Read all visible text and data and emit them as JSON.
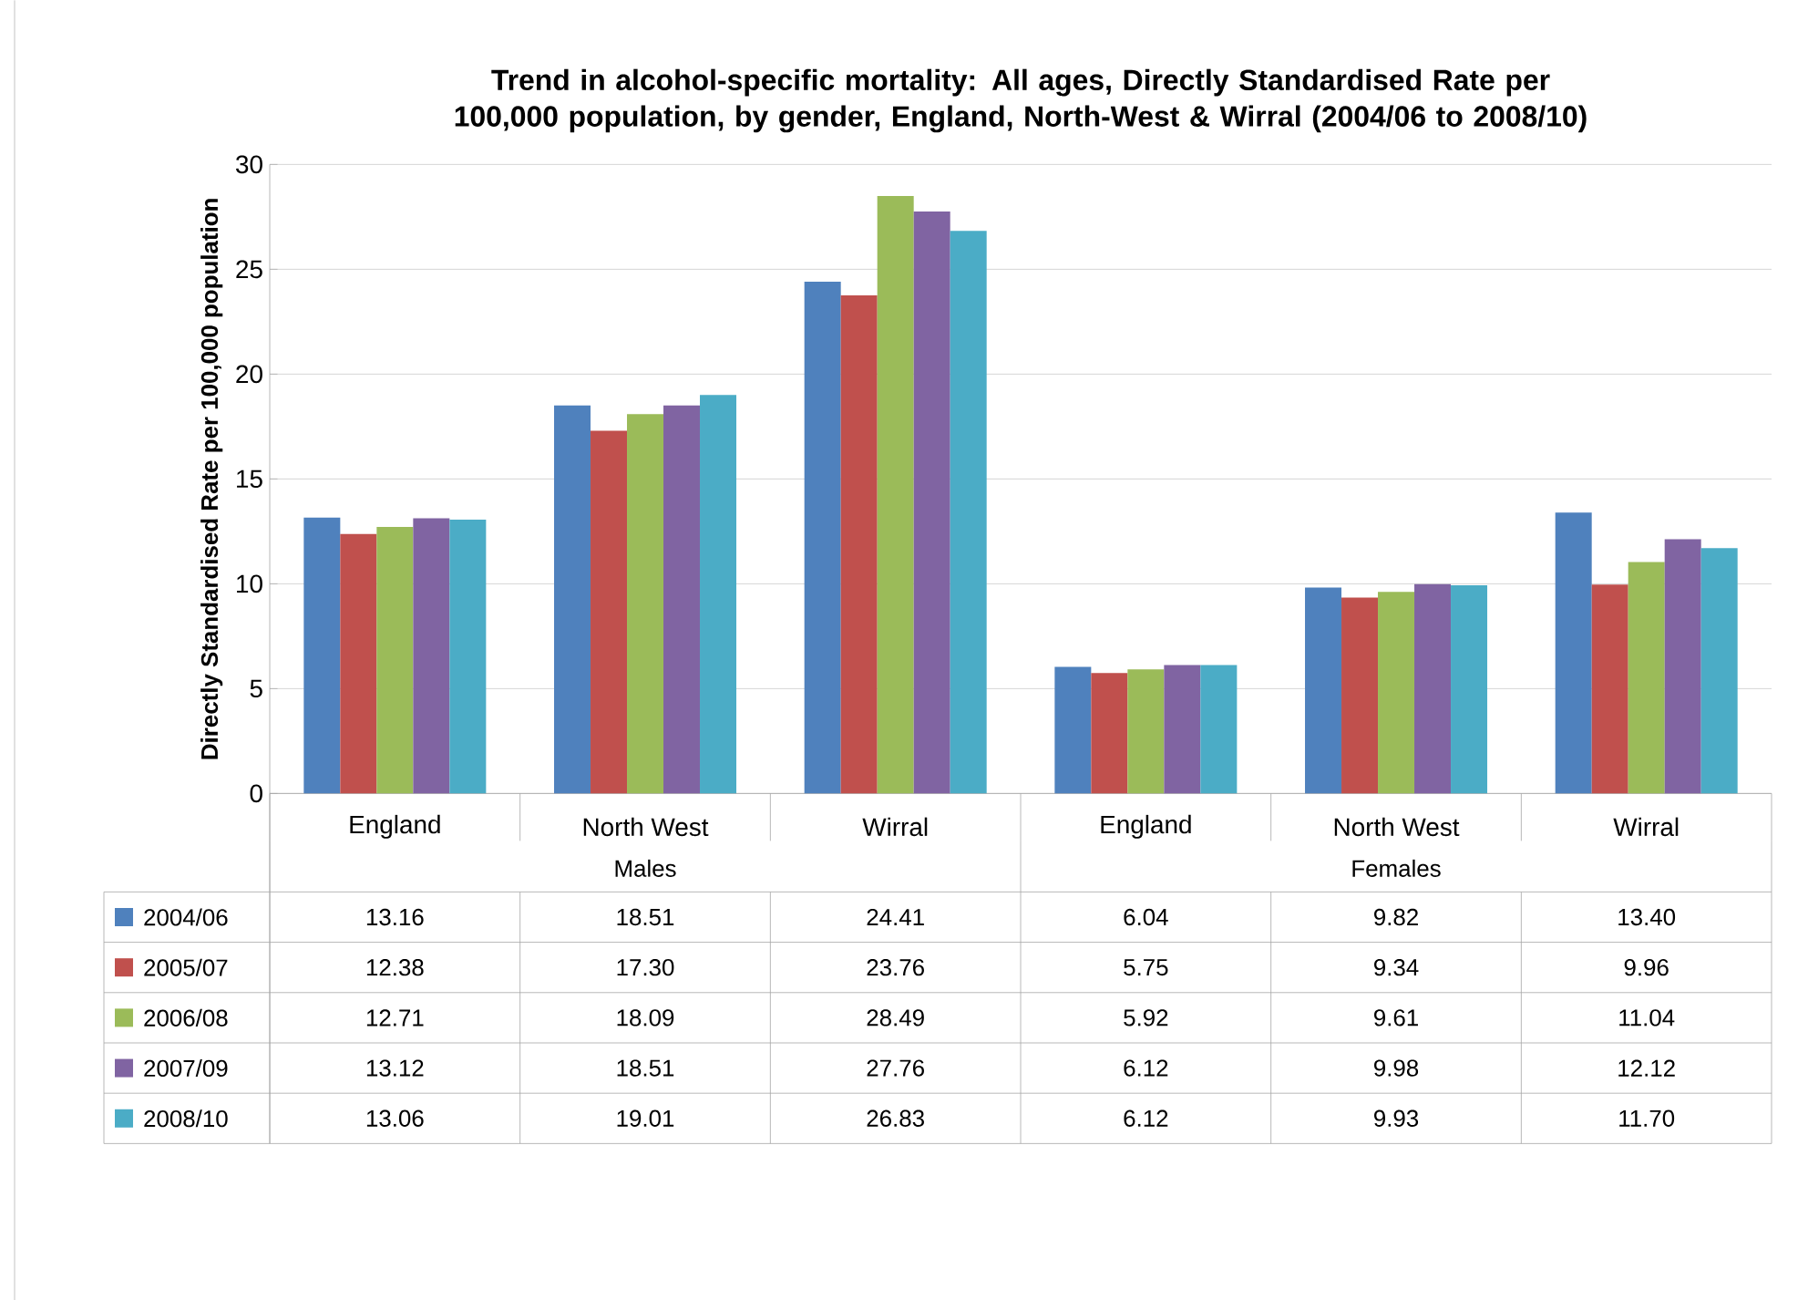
{
  "chart_data": {
    "type": "bar",
    "title": "Trend in alcohol-specific mortality: All ages, Directly Standardised Rate per 100,000 population, by gender, England, North-West & Wirral  (2004/06 to 2008/10)",
    "ylabel": "Directly Standardised Rate per 100,000 population",
    "categories": [
      "England",
      "North West",
      "Wirral",
      "England",
      "North West",
      "Wirral"
    ],
    "annotations": [
      "Males",
      "Females"
    ],
    "series": [
      {
        "name": "2004/06",
        "color": "#4f81bd",
        "values": [
          13.16,
          18.51,
          24.41,
          6.04,
          9.82,
          13.4
        ],
        "value_labels": [
          "13.16",
          "18.51",
          "24.41",
          "6.04",
          "9.82",
          "13.40"
        ]
      },
      {
        "name": "2005/07",
        "color": "#c0504d",
        "values": [
          12.38,
          17.3,
          23.76,
          5.75,
          9.34,
          9.96
        ],
        "value_labels": [
          "12.38",
          "17.30",
          "23.76",
          "5.75",
          "9.34",
          "9.96"
        ]
      },
      {
        "name": "2006/08",
        "color": "#9bbb59",
        "values": [
          12.71,
          18.09,
          28.49,
          5.92,
          9.61,
          11.04
        ],
        "value_labels": [
          "12.71",
          "18.09",
          "28.49",
          "5.92",
          "9.61",
          "11.04"
        ]
      },
      {
        "name": "2007/09",
        "color": "#8064a2",
        "values": [
          13.12,
          18.51,
          27.76,
          6.12,
          9.98,
          12.12
        ],
        "value_labels": [
          "13.12",
          "18.51",
          "27.76",
          "6.12",
          "9.98",
          "12.12"
        ]
      },
      {
        "name": "2008/10",
        "color": "#4bacc6",
        "values": [
          13.06,
          19.01,
          26.83,
          6.12,
          9.93,
          11.7
        ],
        "value_labels": [
          "13.06",
          "19.01",
          "26.83",
          "6.12",
          "9.93",
          "11.70"
        ]
      }
    ],
    "ylim": [
      0,
      30
    ],
    "yticks": [
      0,
      5,
      10,
      15,
      20,
      25,
      30
    ],
    "grid": "y",
    "legend": "bottom"
  }
}
